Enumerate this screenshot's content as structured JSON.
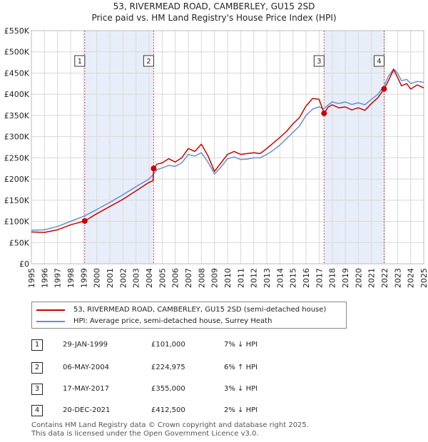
{
  "title_line1": "53, RIVERMEAD ROAD, CAMBERLEY, GU15 2SD",
  "title_line2": "Price paid vs. HM Land Registry's House Price Index (HPI)",
  "colors": {
    "property": "#cc0000",
    "hpi": "#6a8fd0",
    "shade": "#e8eef9",
    "grid": "#d8d8d8",
    "vline": "#cc0000"
  },
  "chart_data": {
    "type": "line",
    "xlim": [
      1995,
      2025
    ],
    "ylim": [
      0,
      550000
    ],
    "yticks": [
      0,
      50000,
      100000,
      150000,
      200000,
      250000,
      300000,
      350000,
      400000,
      450000,
      500000,
      550000
    ],
    "ytick_labels": [
      "£0",
      "£50K",
      "£100K",
      "£150K",
      "£200K",
      "£250K",
      "£300K",
      "£350K",
      "£400K",
      "£450K",
      "£500K",
      "£550K"
    ],
    "xtick_labels": [
      "1995",
      "1996",
      "1997",
      "1998",
      "1999",
      "2000",
      "2001",
      "2002",
      "2003",
      "2004",
      "2005",
      "2006",
      "2007",
      "2008",
      "2009",
      "2010",
      "2011",
      "2012",
      "2013",
      "2014",
      "2015",
      "2016",
      "2017",
      "2018",
      "2019",
      "2020",
      "2021",
      "2022",
      "2023",
      "2024",
      "2025"
    ],
    "shaded_ranges": [
      [
        1999.08,
        2004.35
      ],
      [
        2017.38,
        2021.97
      ]
    ],
    "markers": [
      {
        "label": "1",
        "x": 1999.08,
        "y": 101000
      },
      {
        "label": "2",
        "x": 2004.35,
        "y": 224975
      },
      {
        "label": "3",
        "x": 2017.38,
        "y": 355000
      },
      {
        "label": "4",
        "x": 2021.97,
        "y": 412500
      }
    ],
    "series": [
      {
        "name": "53, RIVERMEAD ROAD, CAMBERLEY, GU15 2SD (semi-detached house)",
        "color": "#cc0000",
        "points": [
          [
            1995,
            75000
          ],
          [
            1996,
            74000
          ],
          [
            1997,
            80000
          ],
          [
            1998,
            92000
          ],
          [
            1999.08,
            101000
          ],
          [
            2000,
            118000
          ],
          [
            2001,
            135000
          ],
          [
            2002,
            152000
          ],
          [
            2003,
            172000
          ],
          [
            2004,
            192000
          ],
          [
            2004.3,
            196000
          ],
          [
            2004.35,
            224975
          ],
          [
            2004.6,
            235000
          ],
          [
            2005,
            238000
          ],
          [
            2005.5,
            248000
          ],
          [
            2006,
            240000
          ],
          [
            2006.5,
            250000
          ],
          [
            2007,
            272000
          ],
          [
            2007.5,
            265000
          ],
          [
            2008,
            282000
          ],
          [
            2008.5,
            255000
          ],
          [
            2009,
            218000
          ],
          [
            2009.5,
            238000
          ],
          [
            2010,
            258000
          ],
          [
            2010.5,
            265000
          ],
          [
            2011,
            258000
          ],
          [
            2011.5,
            260000
          ],
          [
            2012,
            262000
          ],
          [
            2012.5,
            260000
          ],
          [
            2013,
            272000
          ],
          [
            2013.5,
            285000
          ],
          [
            2014,
            298000
          ],
          [
            2014.5,
            312000
          ],
          [
            2015,
            330000
          ],
          [
            2015.5,
            345000
          ],
          [
            2016,
            372000
          ],
          [
            2016.5,
            390000
          ],
          [
            2017,
            388000
          ],
          [
            2017.38,
            355000
          ],
          [
            2017.7,
            370000
          ],
          [
            2018,
            375000
          ],
          [
            2018.5,
            368000
          ],
          [
            2019,
            370000
          ],
          [
            2019.5,
            363000
          ],
          [
            2020,
            368000
          ],
          [
            2020.5,
            362000
          ],
          [
            2021,
            378000
          ],
          [
            2021.5,
            392000
          ],
          [
            2021.97,
            412500
          ],
          [
            2022.3,
            432000
          ],
          [
            2022.7,
            458000
          ],
          [
            2023,
            440000
          ],
          [
            2023.3,
            420000
          ],
          [
            2023.7,
            425000
          ],
          [
            2024,
            412000
          ],
          [
            2024.5,
            422000
          ],
          [
            2025,
            415000
          ]
        ]
      },
      {
        "name": "HPI: Average price, semi-detached house, Surrey Heath",
        "color": "#6a8fd0",
        "points": [
          [
            1995,
            79000
          ],
          [
            1996,
            80000
          ],
          [
            1997,
            88000
          ],
          [
            1998,
            100000
          ],
          [
            1999,
            112000
          ],
          [
            2000,
            128000
          ],
          [
            2001,
            145000
          ],
          [
            2002,
            163000
          ],
          [
            2003,
            182000
          ],
          [
            2004,
            200000
          ],
          [
            2004.35,
            212000
          ],
          [
            2004.6,
            222000
          ],
          [
            2005,
            226000
          ],
          [
            2005.5,
            232000
          ],
          [
            2006,
            230000
          ],
          [
            2006.5,
            238000
          ],
          [
            2007,
            258000
          ],
          [
            2007.5,
            254000
          ],
          [
            2008,
            262000
          ],
          [
            2008.5,
            240000
          ],
          [
            2009,
            212000
          ],
          [
            2009.5,
            228000
          ],
          [
            2010,
            248000
          ],
          [
            2010.5,
            252000
          ],
          [
            2011,
            246000
          ],
          [
            2011.5,
            247000
          ],
          [
            2012,
            250000
          ],
          [
            2012.5,
            250000
          ],
          [
            2013,
            258000
          ],
          [
            2013.5,
            268000
          ],
          [
            2014,
            280000
          ],
          [
            2014.5,
            295000
          ],
          [
            2015,
            310000
          ],
          [
            2015.5,
            325000
          ],
          [
            2016,
            350000
          ],
          [
            2016.5,
            365000
          ],
          [
            2017,
            370000
          ],
          [
            2017.38,
            366000
          ],
          [
            2017.7,
            375000
          ],
          [
            2018,
            382000
          ],
          [
            2018.5,
            378000
          ],
          [
            2019,
            382000
          ],
          [
            2019.5,
            376000
          ],
          [
            2020,
            380000
          ],
          [
            2020.5,
            375000
          ],
          [
            2021,
            388000
          ],
          [
            2021.5,
            400000
          ],
          [
            2021.97,
            420000
          ],
          [
            2022.3,
            442000
          ],
          [
            2022.7,
            460000
          ],
          [
            2023,
            450000
          ],
          [
            2023.3,
            432000
          ],
          [
            2023.7,
            435000
          ],
          [
            2024,
            425000
          ],
          [
            2024.5,
            430000
          ],
          [
            2025,
            428000
          ]
        ]
      }
    ]
  },
  "legend": {
    "property_label": "53, RIVERMEAD ROAD, CAMBERLEY, GU15 2SD (semi-detached house)",
    "hpi_label": "HPI: Average price, semi-detached house, Surrey Heath"
  },
  "transactions": [
    {
      "num": "1",
      "date": "29-JAN-1999",
      "price": "£101,000",
      "hpi": "7% ↓ HPI"
    },
    {
      "num": "2",
      "date": "06-MAY-2004",
      "price": "£224,975",
      "hpi": "6% ↑ HPI"
    },
    {
      "num": "3",
      "date": "17-MAY-2017",
      "price": "£355,000",
      "hpi": "3% ↓ HPI"
    },
    {
      "num": "4",
      "date": "20-DEC-2021",
      "price": "£412,500",
      "hpi": "2% ↓ HPI"
    }
  ],
  "footer_line1": "Contains HM Land Registry data © Crown copyright and database right 2025.",
  "footer_line2": "This data is licensed under the Open Government Licence v3.0."
}
